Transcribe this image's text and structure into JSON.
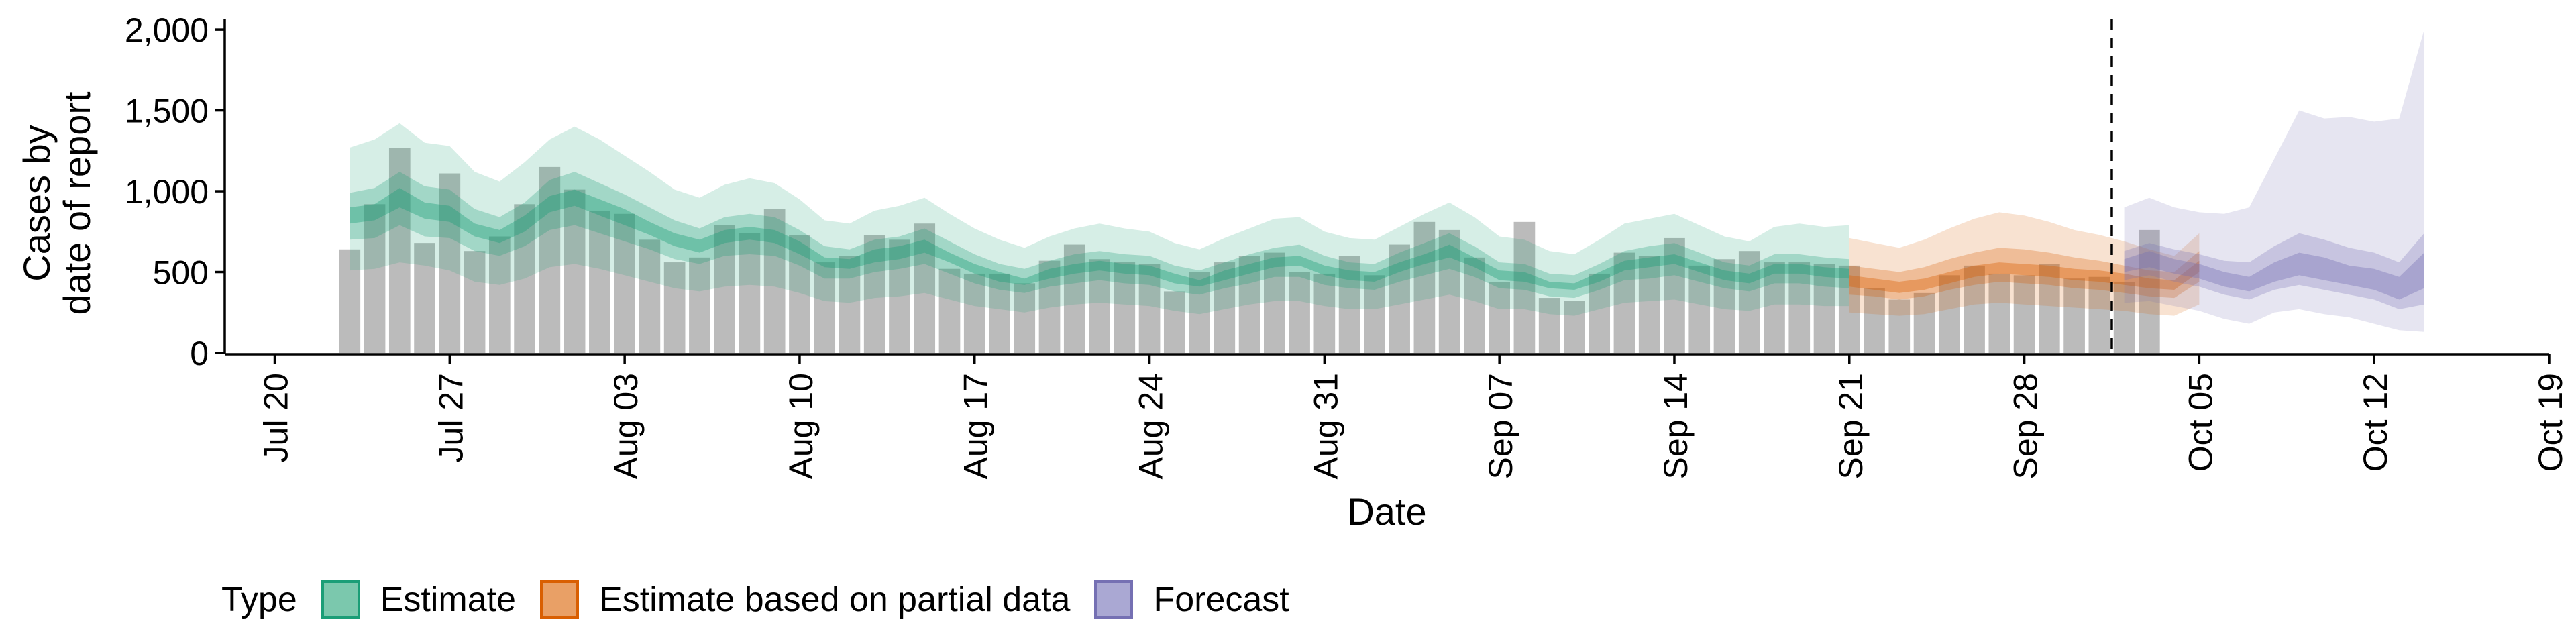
{
  "chart_data": {
    "type": "bar",
    "ylabel_lines": [
      "Cases by",
      "date of report"
    ],
    "xlabel": "Date",
    "ylim": [
      0,
      2100
    ],
    "xlim": [
      "2020-07-18",
      "2020-10-19"
    ],
    "y_ticks": [
      0,
      500,
      1000,
      1500,
      2000
    ],
    "y_tick_labels": [
      "0",
      "500",
      "1,000",
      "1,500",
      "2,000"
    ],
    "x_ticks": [
      "2020-07-20",
      "2020-07-27",
      "2020-08-03",
      "2020-08-10",
      "2020-08-17",
      "2020-08-24",
      "2020-08-31",
      "2020-09-07",
      "2020-09-14",
      "2020-09-21",
      "2020-09-28",
      "2020-10-05",
      "2020-10-12",
      "2020-10-19"
    ],
    "x_tick_labels": [
      "Jul 20",
      "Jul 27",
      "Aug 03",
      "Aug 10",
      "Aug 17",
      "Aug 24",
      "Aug 31",
      "Sep 07",
      "Sep 14",
      "Sep 21",
      "Sep 28",
      "Oct 05",
      "Oct 12",
      "Oct 19"
    ],
    "grid": false,
    "forecast_date": "2020-10-01",
    "bars": {
      "start": "2020-07-23",
      "color": "#bbbbbb",
      "values": [
        640,
        920,
        1270,
        680,
        1110,
        630,
        720,
        920,
        1150,
        1010,
        880,
        860,
        700,
        560,
        590,
        790,
        740,
        890,
        730,
        560,
        600,
        730,
        700,
        800,
        520,
        490,
        490,
        430,
        570,
        670,
        580,
        560,
        550,
        380,
        500,
        560,
        600,
        620,
        500,
        490,
        600,
        480,
        670,
        810,
        760,
        590,
        440,
        810,
        340,
        320,
        490,
        620,
        600,
        710,
        540,
        580,
        630,
        560,
        560,
        550,
        540,
        400,
        330,
        370,
        480,
        540,
        490,
        480,
        550,
        460,
        470,
        440,
        760
      ]
    },
    "series": [
      {
        "name": "Estimate",
        "start": "2020-07-23",
        "color": "#1b9e77",
        "median": [
          850,
          870,
          960,
          880,
          860,
          760,
          720,
          800,
          920,
          960,
          900,
          840,
          770,
          700,
          660,
          720,
          740,
          720,
          650,
          560,
          550,
          600,
          620,
          660,
          590,
          520,
          470,
          440,
          490,
          520,
          540,
          520,
          510,
          460,
          430,
          480,
          520,
          560,
          570,
          510,
          480,
          470,
          530,
          580,
          630,
          560,
          480,
          470,
          420,
          410,
          470,
          540,
          560,
          580,
          530,
          480,
          460,
          520,
          520,
          500,
          490
        ],
        "lower90": [
          510,
          520,
          560,
          540,
          510,
          440,
          420,
          460,
          530,
          550,
          520,
          480,
          440,
          400,
          380,
          410,
          420,
          410,
          370,
          320,
          310,
          340,
          350,
          370,
          330,
          290,
          270,
          250,
          280,
          300,
          310,
          300,
          290,
          260,
          240,
          270,
          300,
          320,
          320,
          290,
          270,
          270,
          300,
          330,
          360,
          320,
          270,
          270,
          240,
          230,
          270,
          310,
          320,
          330,
          300,
          270,
          260,
          300,
          300,
          290,
          290
        ],
        "upper90": [
          1270,
          1320,
          1420,
          1300,
          1280,
          1120,
          1060,
          1180,
          1320,
          1400,
          1320,
          1220,
          1120,
          1010,
          960,
          1040,
          1080,
          1050,
          950,
          820,
          800,
          880,
          910,
          960,
          860,
          770,
          700,
          650,
          720,
          770,
          800,
          770,
          750,
          680,
          640,
          710,
          770,
          830,
          840,
          750,
          710,
          700,
          780,
          860,
          930,
          840,
          720,
          700,
          630,
          610,
          700,
          800,
          830,
          860,
          790,
          720,
          690,
          780,
          800,
          780,
          790
        ],
        "lower50": [
          700,
          710,
          790,
          720,
          710,
          630,
          600,
          660,
          760,
          790,
          740,
          690,
          640,
          580,
          550,
          600,
          610,
          600,
          540,
          460,
          460,
          500,
          520,
          550,
          490,
          430,
          390,
          370,
          410,
          430,
          450,
          430,
          420,
          380,
          360,
          400,
          430,
          470,
          470,
          420,
          400,
          390,
          440,
          480,
          520,
          470,
          400,
          390,
          350,
          340,
          390,
          450,
          460,
          480,
          440,
          400,
          380,
          430,
          430,
          410,
          400
        ],
        "upper50": [
          990,
          1020,
          1120,
          1030,
          1010,
          890,
          840,
          930,
          1070,
          1120,
          1050,
          980,
          900,
          820,
          770,
          840,
          860,
          840,
          760,
          660,
          640,
          700,
          720,
          770,
          690,
          610,
          550,
          520,
          570,
          610,
          630,
          610,
          600,
          540,
          510,
          560,
          610,
          650,
          670,
          600,
          560,
          550,
          620,
          680,
          740,
          660,
          560,
          550,
          490,
          480,
          550,
          630,
          660,
          680,
          620,
          560,
          540,
          610,
          610,
          590,
          580
        ],
        "lower20": [
          800,
          820,
          900,
          830,
          810,
          720,
          680,
          750,
          870,
          910,
          850,
          790,
          730,
          660,
          620,
          680,
          700,
          680,
          610,
          530,
          520,
          560,
          580,
          620,
          560,
          490,
          440,
          420,
          460,
          490,
          510,
          490,
          480,
          430,
          410,
          450,
          490,
          530,
          540,
          480,
          450,
          440,
          500,
          550,
          590,
          530,
          450,
          440,
          400,
          390,
          440,
          510,
          530,
          550,
          500,
          450,
          430,
          490,
          490,
          470,
          460
        ],
        "upper20": [
          900,
          920,
          1020,
          930,
          910,
          800,
          760,
          850,
          970,
          1010,
          950,
          890,
          810,
          740,
          700,
          760,
          780,
          760,
          690,
          590,
          580,
          640,
          660,
          700,
          620,
          550,
          500,
          460,
          520,
          550,
          570,
          550,
          540,
          490,
          450,
          510,
          550,
          590,
          600,
          540,
          510,
          500,
          560,
          610,
          670,
          590,
          510,
          500,
          440,
          430,
          500,
          570,
          590,
          610,
          560,
          510,
          490,
          550,
          550,
          530,
          520
        ]
      },
      {
        "name": "Estimate based on partial data",
        "start": "2020-09-21",
        "color": "#d95f02",
        "median": [
          440,
          420,
          400,
          420,
          460,
          500,
          520,
          510,
          500,
          480,
          470,
          450,
          430,
          420,
          530
        ],
        "lower90": [
          250,
          240,
          230,
          240,
          270,
          300,
          310,
          300,
          290,
          280,
          270,
          260,
          240,
          230,
          300
        ],
        "upper90": [
          710,
          680,
          650,
          700,
          770,
          830,
          870,
          850,
          810,
          760,
          730,
          690,
          640,
          600,
          740
        ],
        "lower50": [
          360,
          350,
          330,
          350,
          390,
          420,
          440,
          430,
          420,
          400,
          390,
          370,
          350,
          340,
          440
        ],
        "upper50": [
          540,
          520,
          500,
          530,
          580,
          620,
          650,
          640,
          620,
          590,
          570,
          540,
          510,
          500,
          630
        ],
        "lower20": [
          410,
          390,
          370,
          390,
          430,
          470,
          490,
          480,
          470,
          450,
          440,
          420,
          400,
          390,
          500
        ],
        "upper20": [
          480,
          460,
          440,
          460,
          500,
          540,
          560,
          550,
          540,
          520,
          510,
          490,
          460,
          450,
          570
        ]
      },
      {
        "name": "Forecast",
        "start": "2020-10-02",
        "color": "#7570b3",
        "median": [
          540,
          580,
          530,
          500,
          450,
          420,
          490,
          550,
          520,
          480,
          460,
          400,
          530
        ],
        "lower90": [
          310,
          320,
          290,
          260,
          210,
          180,
          250,
          270,
          240,
          220,
          180,
          140,
          130
        ],
        "upper90": [
          900,
          960,
          900,
          870,
          860,
          900,
          1200,
          1500,
          1450,
          1460,
          1430,
          1450,
          2000
        ],
        "lower50": [
          450,
          480,
          440,
          410,
          360,
          330,
          390,
          420,
          390,
          360,
          330,
          270,
          300
        ],
        "upper50": [
          630,
          680,
          640,
          610,
          570,
          560,
          660,
          740,
          700,
          650,
          620,
          560,
          740
        ],
        "lower20": [
          500,
          530,
          490,
          460,
          410,
          380,
          440,
          480,
          450,
          420,
          390,
          330,
          400
        ],
        "upper20": [
          580,
          630,
          580,
          550,
          500,
          470,
          560,
          620,
          590,
          540,
          520,
          470,
          620
        ]
      }
    ],
    "legend": {
      "position": "bottom",
      "title": "Type",
      "items": [
        "Estimate",
        "Estimate based on partial data",
        "Forecast"
      ]
    }
  }
}
